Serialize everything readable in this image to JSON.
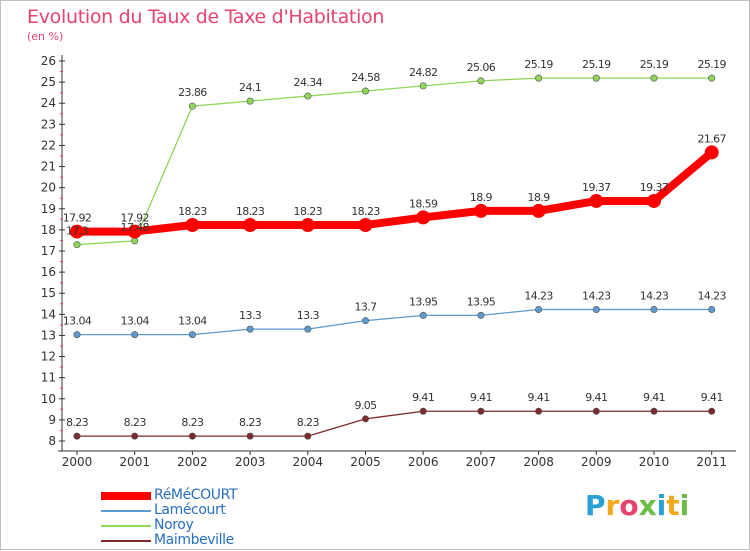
{
  "header": {
    "title": "Evolution du Taux de Taxe d'Habitation",
    "subtitle": "(en %)"
  },
  "logo": {
    "letters": [
      "P",
      "r",
      "o",
      "x",
      "i",
      "t",
      "i"
    ],
    "colors": [
      "#2a9fd6",
      "#f2a81d",
      "#e8426e",
      "#6cbd45",
      "#2a9fd6",
      "#f2a81d",
      "#6cbd45"
    ]
  },
  "chart_data": {
    "type": "line",
    "title": "Evolution du Taux de Taxe d'Habitation",
    "ylabel": "(en %)",
    "x": [
      "2000",
      "2001",
      "2002",
      "2003",
      "2004",
      "2005",
      "2006",
      "2007",
      "2008",
      "2009",
      "2010",
      "2011"
    ],
    "ylim": [
      8,
      26
    ],
    "yticks": [
      "8",
      "9",
      "10",
      "11",
      "12",
      "13",
      "14",
      "15",
      "16",
      "17",
      "18",
      "19",
      "20",
      "21",
      "22",
      "23",
      "24",
      "25",
      "26"
    ],
    "grid": false,
    "legend_position": "bottom-left",
    "series": [
      {
        "name": "RéMéCOURT",
        "color": "#ff0000",
        "highlight": true,
        "values": [
          17.92,
          17.92,
          18.23,
          18.23,
          18.23,
          18.23,
          18.59,
          18.9,
          18.9,
          19.37,
          19.37,
          21.67
        ],
        "labels": [
          "17.92",
          "17.92",
          "18.23",
          "18.23",
          "18.23",
          "18.23",
          "18.59",
          "18.9",
          "18.9",
          "19.37",
          "19.37",
          "21.67"
        ]
      },
      {
        "name": "Lamécourt",
        "color": "#5d9acd",
        "highlight": false,
        "values": [
          13.04,
          13.04,
          13.04,
          13.3,
          13.3,
          13.7,
          13.95,
          13.95,
          14.23,
          14.23,
          14.23,
          14.23
        ],
        "labels": [
          "13.04",
          "13.04",
          "13.04",
          "13.3",
          "13.3",
          "13.7",
          "13.95",
          "13.95",
          "14.23",
          "14.23",
          "14.23",
          "14.23"
        ]
      },
      {
        "name": "Noroy",
        "color": "#8fd65a",
        "highlight": false,
        "values": [
          17.3,
          17.48,
          23.86,
          24.1,
          24.34,
          24.58,
          24.82,
          25.06,
          25.19,
          25.19,
          25.19,
          25.19
        ],
        "labels": [
          "17.3",
          "17.48",
          "23.86",
          "24.1",
          "24.34",
          "24.58",
          "24.82",
          "25.06",
          "25.19",
          "25.19",
          "25.19",
          "25.19"
        ]
      },
      {
        "name": "Maimbeville",
        "color": "#7b2b2b",
        "highlight": false,
        "values": [
          8.23,
          8.23,
          8.23,
          8.23,
          8.23,
          9.05,
          9.41,
          9.41,
          9.41,
          9.41,
          9.41,
          9.41
        ],
        "labels": [
          "8.23",
          "8.23",
          "8.23",
          "8.23",
          "8.23",
          "9.05",
          "9.41",
          "9.41",
          "9.41",
          "9.41",
          "9.41",
          "9.41"
        ]
      }
    ]
  }
}
